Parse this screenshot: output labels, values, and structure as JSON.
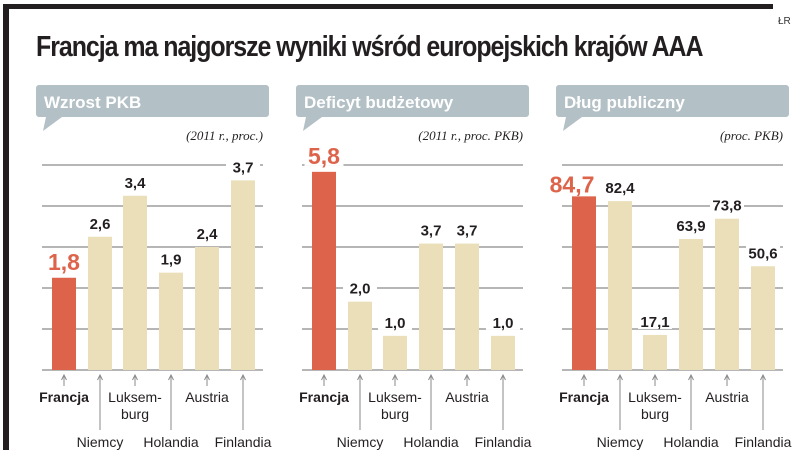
{
  "title": "Francja ma najgorsze wyniki wśród europejskich krajów AAA",
  "credit": "ŁR",
  "colors": {
    "highlight": "#dd644a",
    "bar": "#ebdfba",
    "banner": "#b3c0c6",
    "grid": "#8a8a8a",
    "frame": "#231f20"
  },
  "chart_data": [
    {
      "type": "bar",
      "title": "Wzrost PKB",
      "subtitle": "(2011 r., proc.)",
      "categories": [
        "Francja",
        "Niemcy",
        "Luksem-burg",
        "Holandia",
        "Austria",
        "Finlandia"
      ],
      "values": [
        1.8,
        2.6,
        3.4,
        1.9,
        2.4,
        3.7
      ],
      "value_labels": [
        "1,8",
        "2,6",
        "3,4",
        "1,9",
        "2,4",
        "3,7"
      ],
      "highlight": "Francja",
      "ylim": [
        0,
        4
      ],
      "grid": true
    },
    {
      "type": "bar",
      "title": "Deficyt budżetowy",
      "subtitle": "(2011 r., proc. PKB)",
      "categories": [
        "Francja",
        "Niemcy",
        "Luksem-burg",
        "Holandia",
        "Austria",
        "Finlandia"
      ],
      "values": [
        5.8,
        2.0,
        1.0,
        3.7,
        3.7,
        1.0
      ],
      "value_labels": [
        "5,8",
        "2,0",
        "1,0",
        "3,7",
        "3,7",
        "1,0"
      ],
      "highlight": "Francja",
      "ylim": [
        0,
        6
      ],
      "grid": true
    },
    {
      "type": "bar",
      "title": "Dług publiczny",
      "subtitle": "(proc. PKB)",
      "categories": [
        "Francja",
        "Niemcy",
        "Luksem-burg",
        "Holandia",
        "Austria",
        "Finlandia"
      ],
      "values": [
        84.7,
        82.4,
        17.1,
        63.9,
        73.8,
        50.6
      ],
      "value_labels": [
        "84,7",
        "82,4",
        "17,1",
        "63,9",
        "73,8",
        "50,6"
      ],
      "highlight": "Francja",
      "ylim": [
        0,
        100
      ],
      "grid": true
    }
  ]
}
